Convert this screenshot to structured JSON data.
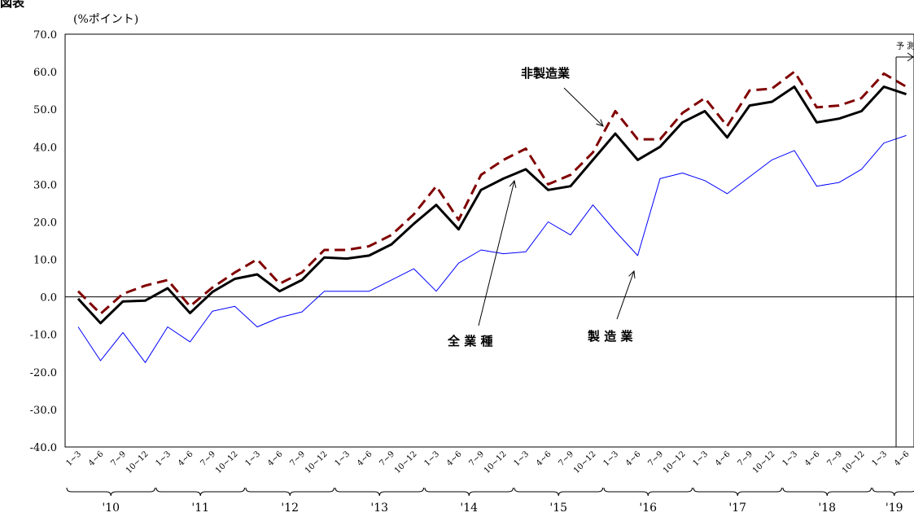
{
  "title": "図表",
  "chart_data": {
    "type": "line",
    "unit_label": "(%ポイント)",
    "ylim": [
      -40,
      70
    ],
    "y_ticks": [
      "70.0",
      "60.0",
      "50.0",
      "40.0",
      "30.0",
      "20.0",
      "10.0",
      "0.0",
      "-10.0",
      "-20.0",
      "-30.0",
      "-40.0"
    ],
    "categories": [
      "1~3",
      "4~6",
      "7~9",
      "10~12",
      "1~3",
      "4~6",
      "7~9",
      "10~12",
      "1~3",
      "4~6",
      "7~9",
      "10~12",
      "1~3",
      "4~6",
      "7~9",
      "10~12",
      "1~3",
      "4~6",
      "7~9",
      "10~12",
      "1~3",
      "4~6",
      "7~9",
      "10~12",
      "1~3",
      "4~6",
      "7~9",
      "10~12",
      "1~3",
      "4~6",
      "7~9",
      "10~12",
      "1~3",
      "4~6",
      "7~9",
      "10~12",
      "1~3",
      "4~6"
    ],
    "years": [
      {
        "label": "'10",
        "start": 0,
        "end": 3
      },
      {
        "label": "'11",
        "start": 4,
        "end": 7
      },
      {
        "label": "'12",
        "start": 8,
        "end": 11
      },
      {
        "label": "'13",
        "start": 12,
        "end": 15
      },
      {
        "label": "'14",
        "start": 16,
        "end": 19
      },
      {
        "label": "'15",
        "start": 20,
        "end": 23
      },
      {
        "label": "'16",
        "start": 24,
        "end": 27
      },
      {
        "label": "'17",
        "start": 28,
        "end": 31
      },
      {
        "label": "'18",
        "start": 32,
        "end": 35
      },
      {
        "label": "'19",
        "start": 36,
        "end": 37
      }
    ],
    "series": [
      {
        "name": "非製造業",
        "color": "#800000",
        "style": "dashed",
        "values": [
          1.5,
          -4.5,
          0.8,
          3,
          4.5,
          -2.5,
          2.5,
          6.5,
          10,
          3.5,
          6.5,
          12.5,
          12.5,
          13.5,
          16.5,
          22,
          29.5,
          20.5,
          32.5,
          36.5,
          39.5,
          30,
          32.5,
          38.5,
          49.5,
          42,
          42,
          49,
          53,
          45.5,
          55,
          55.5,
          60,
          50.5,
          51,
          53,
          59.5,
          56
        ]
      },
      {
        "name": "全業種",
        "color": "#000000",
        "style": "solid-thick",
        "values": [
          -0.5,
          -7,
          -1.2,
          -1,
          2.3,
          -4.3,
          1.3,
          4.8,
          6,
          1.5,
          4.5,
          10.5,
          10.2,
          11,
          14,
          19.5,
          24.5,
          18,
          28.5,
          31.5,
          34,
          28.5,
          29.5,
          36.5,
          43.5,
          36.5,
          40,
          46.5,
          49.5,
          42.5,
          51,
          52,
          56,
          46.5,
          47.5,
          49.5,
          56,
          54
        ]
      },
      {
        "name": "製造業",
        "color": "#0000ff",
        "style": "solid-thin",
        "values": [
          -8,
          -17,
          -9.5,
          -17.5,
          -8,
          -12,
          -3.8,
          -2.5,
          -8,
          -5.5,
          -4,
          1.5,
          1.5,
          1.5,
          4.5,
          7.5,
          1.5,
          9,
          12.5,
          11.5,
          12,
          20,
          16.5,
          24.5,
          17.5,
          11,
          31.5,
          33,
          31,
          27.5,
          32,
          36.5,
          39,
          29.5,
          30.5,
          34,
          41,
          43
        ]
      }
    ],
    "annotations": [
      {
        "text": "非製造業",
        "series": "非製造業"
      },
      {
        "text": "全 業 種",
        "series": "全業種"
      },
      {
        "text": "製 造 業",
        "series": "製造業"
      }
    ],
    "forecast_label": "予 測",
    "forecast_start_index": 36
  }
}
